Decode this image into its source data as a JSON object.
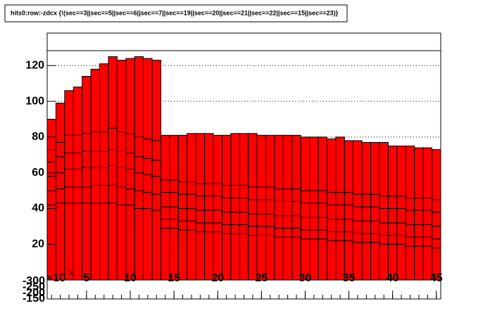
{
  "chart_data": {
    "type": "histogram",
    "title": "hits0:row:-zdcx {!(sec==3||sec==5||sec==6||sec==7||sec==19||sec==20||sec==21||sec==22||sec==15||sec==23)}",
    "bins": [
      0.5,
      1.5,
      2.5,
      3.5,
      4.5,
      5.5,
      6.5,
      7.5,
      8.5,
      9.5,
      10.5,
      11.5,
      12.5,
      13.5,
      14.5,
      15.5,
      16.5,
      17.5,
      18.5,
      19.5,
      20.5,
      21.5,
      22.5,
      23.5,
      24.5,
      25.5,
      26.5,
      27.5,
      28.5,
      29.5,
      30.5,
      31.5,
      32.5,
      33.5,
      34.5,
      35.5,
      36.5,
      37.5,
      38.5,
      39.5,
      40.5,
      41.5,
      42.5,
      43.5,
      44.5,
      45.5
    ],
    "series": [
      {
        "color": "#ff0000",
        "values": [
          42,
          43,
          43,
          43,
          43,
          43,
          43,
          43,
          42,
          42,
          40,
          40,
          39,
          29,
          29,
          28,
          28,
          27,
          27,
          27,
          26,
          26,
          26,
          25,
          25,
          25,
          24,
          24,
          24,
          23,
          23,
          23,
          22,
          22,
          22,
          21,
          21,
          21,
          20,
          20,
          20,
          19,
          19,
          19,
          18
        ]
      },
      {
        "color": "#ff0000",
        "values": [
          8,
          8,
          9,
          9,
          9,
          10,
          10,
          10,
          10,
          9,
          10,
          9,
          9,
          5,
          5,
          5,
          5,
          5,
          5,
          5,
          5,
          5,
          5,
          5,
          5,
          5,
          5,
          5,
          5,
          5,
          5,
          5,
          5,
          5,
          5,
          5,
          5,
          5,
          5,
          5,
          5,
          5,
          5,
          5,
          5
        ]
      },
      {
        "color": "#ff0000",
        "values": [
          8,
          9,
          10,
          10,
          11,
          10,
          10,
          11,
          11,
          11,
          10,
          10,
          10,
          7,
          7,
          7,
          7,
          7,
          7,
          7,
          7,
          7,
          7,
          7,
          7,
          7,
          7,
          7,
          7,
          7,
          7,
          7,
          7,
          7,
          7,
          7,
          7,
          7,
          7,
          7,
          7,
          7,
          7,
          7,
          7
        ]
      },
      {
        "color": "#ff0000",
        "values": [
          8,
          9,
          9,
          9,
          9,
          9,
          9,
          9,
          9,
          9,
          9,
          9,
          9,
          8,
          8,
          8,
          8,
          8,
          8,
          8,
          8,
          8,
          8,
          8,
          8,
          8,
          8,
          8,
          8,
          8,
          8,
          8,
          8,
          8,
          8,
          8,
          8,
          8,
          8,
          8,
          8,
          8,
          8,
          8,
          8
        ]
      },
      {
        "color": "#ff0000",
        "values": [
          7,
          8,
          10,
          10,
          10,
          11,
          11,
          12,
          11,
          11,
          11,
          11,
          11,
          7,
          7,
          7,
          7,
          7,
          7,
          7,
          7,
          7,
          7,
          7,
          7,
          7,
          7,
          7,
          7,
          7,
          7,
          7,
          7,
          7,
          7,
          7,
          7,
          7,
          7,
          7,
          7,
          7,
          7,
          7,
          7
        ]
      },
      {
        "color": "#ff0000",
        "values": [
          17,
          22,
          25,
          27,
          32,
          35,
          38,
          40,
          40,
          42,
          45,
          45,
          45,
          25,
          25,
          26,
          27,
          28,
          28,
          27,
          28,
          29,
          29,
          30,
          29,
          29,
          30,
          30,
          30,
          30,
          30,
          30,
          30,
          31,
          29,
          30,
          29,
          29,
          30,
          28,
          28,
          29,
          28,
          28,
          28
        ]
      }
    ],
    "xlim": [
      0.5,
      45.5
    ],
    "xticks": [
      5,
      10,
      15,
      20,
      25,
      30,
      35,
      40,
      45
    ],
    "ylim": [
      -10.6,
      138.2
    ],
    "yticks": [
      20,
      40,
      60,
      80,
      100,
      120
    ],
    "grid": true,
    "annotations": [
      "-300",
      "-250",
      "-200",
      "-150"
    ],
    "exponent_label": "×10",
    "exponent": "3"
  }
}
